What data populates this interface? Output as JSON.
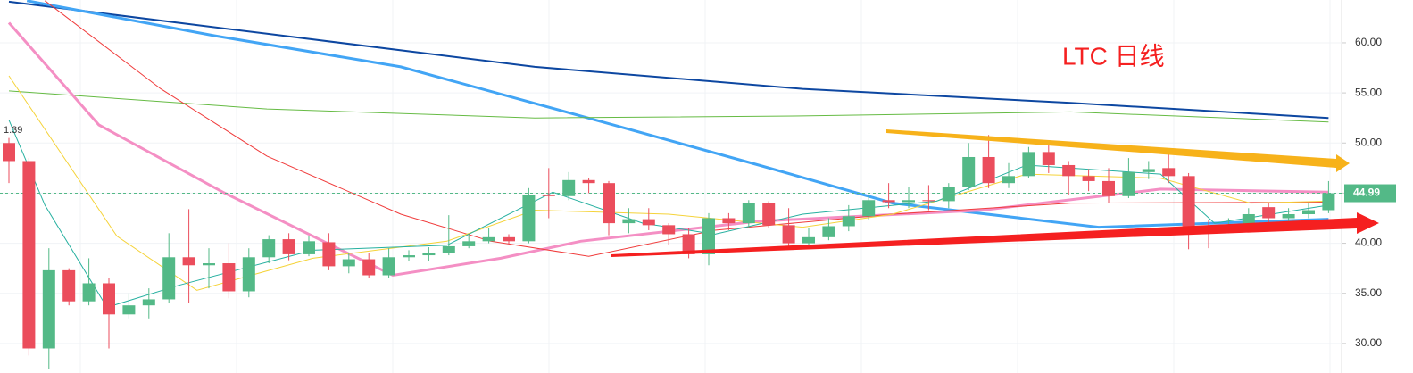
{
  "chart_data": {
    "type": "candlestick",
    "title": "LTC 日线",
    "corner_label": "1.39",
    "ylim": [
      27.05,
      64.27
    ],
    "yticks": [
      {
        "value": 30,
        "label": "30.00"
      },
      {
        "value": 35,
        "label": "35.00"
      },
      {
        "value": 40,
        "label": "40.00"
      },
      {
        "value": 45,
        "label": "45.00"
      },
      {
        "value": 50,
        "label": "50.00"
      },
      {
        "value": 55,
        "label": "55.00"
      },
      {
        "value": 60,
        "label": "60.00"
      }
    ],
    "last_price": 44.99,
    "up_color": "#53b987",
    "down_color": "#eb4d5c",
    "categories": [
      null,
      null,
      null,
      null,
      null,
      null,
      null,
      null,
      null,
      null,
      null,
      null,
      null,
      null,
      null,
      null,
      null,
      null,
      null,
      null,
      null,
      null,
      null,
      null,
      null,
      null,
      null,
      null,
      null,
      null,
      null,
      null,
      null,
      null,
      null,
      null,
      null,
      null,
      null,
      null,
      null,
      null,
      null,
      null,
      null,
      null,
      null,
      null,
      null,
      null,
      null,
      null,
      null,
      null,
      null,
      null,
      null,
      null,
      null,
      null,
      null,
      null,
      null,
      null,
      null,
      null,
      null
    ],
    "open": [
      50.0,
      48.2,
      29.5,
      37.3,
      34.2,
      36.0,
      32.9,
      33.8,
      34.4,
      38.6,
      37.8,
      38.0,
      35.2,
      38.6,
      40.4,
      38.9,
      40.1,
      37.7,
      38.4,
      36.8,
      38.6,
      38.8,
      39.0,
      39.7,
      40.2,
      40.6,
      40.2,
      44.8,
      44.7,
      46.3,
      46.0,
      42.0,
      42.4,
      41.8,
      40.9,
      38.9,
      42.5,
      42.0,
      44.0,
      41.8,
      40.0,
      40.6,
      41.7,
      42.7,
      44.3,
      44.1,
      44.3,
      44.2,
      45.6,
      48.6,
      46.0,
      46.7,
      49.1,
      47.8,
      46.7,
      46.2,
      44.7,
      47.1,
      47.5,
      46.7,
      41.7,
      41.5,
      41.8,
      43.6,
      42.5,
      42.9,
      43.3
    ],
    "high": [
      50.5,
      48.5,
      39.5,
      37.5,
      38.5,
      36.5,
      35.0,
      35.5,
      41.0,
      43.4,
      39.5,
      40.0,
      39.5,
      40.8,
      41.0,
      40.7,
      41.0,
      39.0,
      39.0,
      39.5,
      39.3,
      39.6,
      42.8,
      40.8,
      41.5,
      40.9,
      45.5,
      47.5,
      47.1,
      46.5,
      46.2,
      43.5,
      43.5,
      42.0,
      41.5,
      43.0,
      43.0,
      44.3,
      44.2,
      43.5,
      41.5,
      42.5,
      43.8,
      44.9,
      46.0,
      45.6,
      45.8,
      46.0,
      50.0,
      50.8,
      48.0,
      49.6,
      50.0,
      48.2,
      47.4,
      47.5,
      48.5,
      48.2,
      49.3,
      47.0,
      42.3,
      42.5,
      43.5,
      44.0,
      43.5,
      44.0,
      46.2
    ],
    "low": [
      46.0,
      28.8,
      27.5,
      33.8,
      33.8,
      29.5,
      32.5,
      32.5,
      34.0,
      34.0,
      35.5,
      34.5,
      34.6,
      38.0,
      38.3,
      38.7,
      37.3,
      37.0,
      36.5,
      36.5,
      38.2,
      38.2,
      38.8,
      39.5,
      40.0,
      39.9,
      40.0,
      42.5,
      44.3,
      45.0,
      40.8,
      41.0,
      41.3,
      39.8,
      38.5,
      37.8,
      41.3,
      41.5,
      41.5,
      39.7,
      39.8,
      40.3,
      41.2,
      42.3,
      43.5,
      43.5,
      43.3,
      43.5,
      45.3,
      45.5,
      45.5,
      46.5,
      47.0,
      44.8,
      45.2,
      44.0,
      44.5,
      46.4,
      46.0,
      39.4,
      39.5,
      41.0,
      41.5,
      42.0,
      42.2,
      42.5,
      43.0
    ],
    "close": [
      48.2,
      29.5,
      37.3,
      34.2,
      36.0,
      32.9,
      33.8,
      34.4,
      38.6,
      37.8,
      38.0,
      35.2,
      38.6,
      40.4,
      38.9,
      40.2,
      37.7,
      38.4,
      36.8,
      38.6,
      38.8,
      39.0,
      39.7,
      40.2,
      40.6,
      40.2,
      44.8,
      44.7,
      46.3,
      46.0,
      42.0,
      42.4,
      41.8,
      40.9,
      38.9,
      42.5,
      42.0,
      44.0,
      41.8,
      40.0,
      40.6,
      41.7,
      42.7,
      44.3,
      44.1,
      44.3,
      44.2,
      45.6,
      48.6,
      46.0,
      46.7,
      49.1,
      47.8,
      46.7,
      46.2,
      44.7,
      47.1,
      47.4,
      46.7,
      41.7,
      41.5,
      41.8,
      42.9,
      42.5,
      42.9,
      43.3,
      44.99
    ],
    "lines": [
      {
        "color": "#0d47a1",
        "width": 2,
        "x": [
          0,
          12.9,
          26.3,
          39.7,
          53.1,
          66
        ],
        "values": [
          64.1,
          60.9,
          57.6,
          55.4,
          54.0,
          52.5
        ]
      },
      {
        "color": "#42a5f5",
        "width": 3,
        "x": [
          0.9,
          10.3,
          19.6,
          28.6,
          37.5,
          44.2,
          54.5,
          66
        ],
        "values": [
          64.2,
          60.7,
          57.6,
          52.7,
          47.8,
          44.0,
          41.6,
          42.4
        ]
      },
      {
        "color": "#66bb44",
        "width": 1,
        "x": [
          0,
          12.9,
          26.3,
          39.7,
          53.1,
          66
        ],
        "values": [
          55.2,
          53.4,
          52.5,
          52.7,
          53.1,
          52.1
        ]
      },
      {
        "color": "#f48fc4",
        "width": 3,
        "x": [
          0,
          4.5,
          10.7,
          19.2,
          24.6,
          28.6,
          37.5,
          48.7,
          57.6,
          66
        ],
        "values": [
          62.0,
          51.8,
          45.1,
          36.8,
          38.5,
          40.2,
          42.2,
          43.3,
          45.4,
          45.1
        ]
      },
      {
        "color": "#f03c3c",
        "width": 1,
        "x": [
          1.8,
          7.6,
          12.9,
          19.6,
          24.1,
          29.0,
          35.3,
          44.2,
          53.1,
          66
        ],
        "values": [
          64.2,
          55.4,
          48.7,
          42.9,
          40.2,
          38.7,
          41.3,
          42.9,
          44.0,
          44.1
        ]
      },
      {
        "color": "#f5d33a",
        "width": 1,
        "x": [
          0,
          5.4,
          9.4,
          15.2,
          21.9,
          26.3,
          33.0,
          39.7,
          44.2,
          50.9,
          57.6,
          62.1,
          66
        ],
        "values": [
          56.7,
          40.7,
          35.3,
          38.5,
          40.2,
          43.3,
          42.9,
          41.6,
          42.9,
          46.9,
          46.5,
          44.0,
          44.2
        ]
      },
      {
        "color": "#26b0a0",
        "width": 1,
        "x": [
          0,
          1.8,
          4.9,
          8.5,
          15.2,
          21.9,
          27.2,
          31.7,
          35.3,
          39.7,
          46.4,
          50.9,
          57.6,
          60.3,
          66
        ],
        "values": [
          52.3,
          43.8,
          33.6,
          35.8,
          39.3,
          39.8,
          45.1,
          42.0,
          40.9,
          42.9,
          44.2,
          47.8,
          46.9,
          42.0,
          43.8
        ]
      }
    ]
  }
}
